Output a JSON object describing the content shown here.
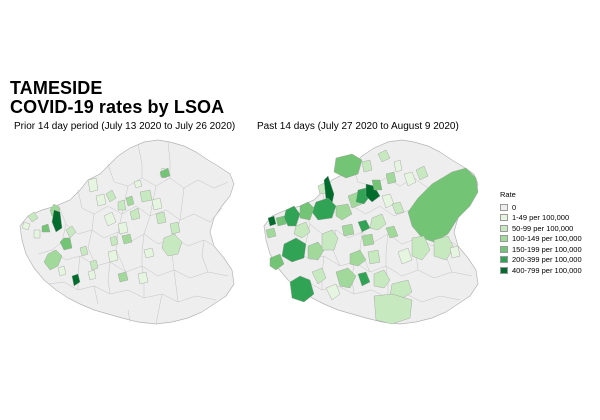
{
  "title_line1": "TAMESIDE",
  "title_line2": "COVID-19 rates by LSOA",
  "maps": [
    {
      "subtitle": "Prior 14 day period (July 13 2020 to July 26 2020)"
    },
    {
      "subtitle": "Past 14 days (July 27 2020 to August  9 2020)"
    }
  ],
  "legend": {
    "title": "Rate",
    "items": [
      {
        "label": "0",
        "color": "#eeeeee"
      },
      {
        "label": "1-49 per 100,000",
        "color": "#e5f5e0"
      },
      {
        "label": "50-99 per 100,000",
        "color": "#c7e9c0"
      },
      {
        "label": "100-149 per 100,000",
        "color": "#a1d99b"
      },
      {
        "label": "150-199 per 100,000",
        "color": "#74c476"
      },
      {
        "label": "200-399 per 100,000",
        "color": "#31a354"
      },
      {
        "label": "400-799 per 100,000",
        "color": "#006d2c"
      }
    ]
  }
}
